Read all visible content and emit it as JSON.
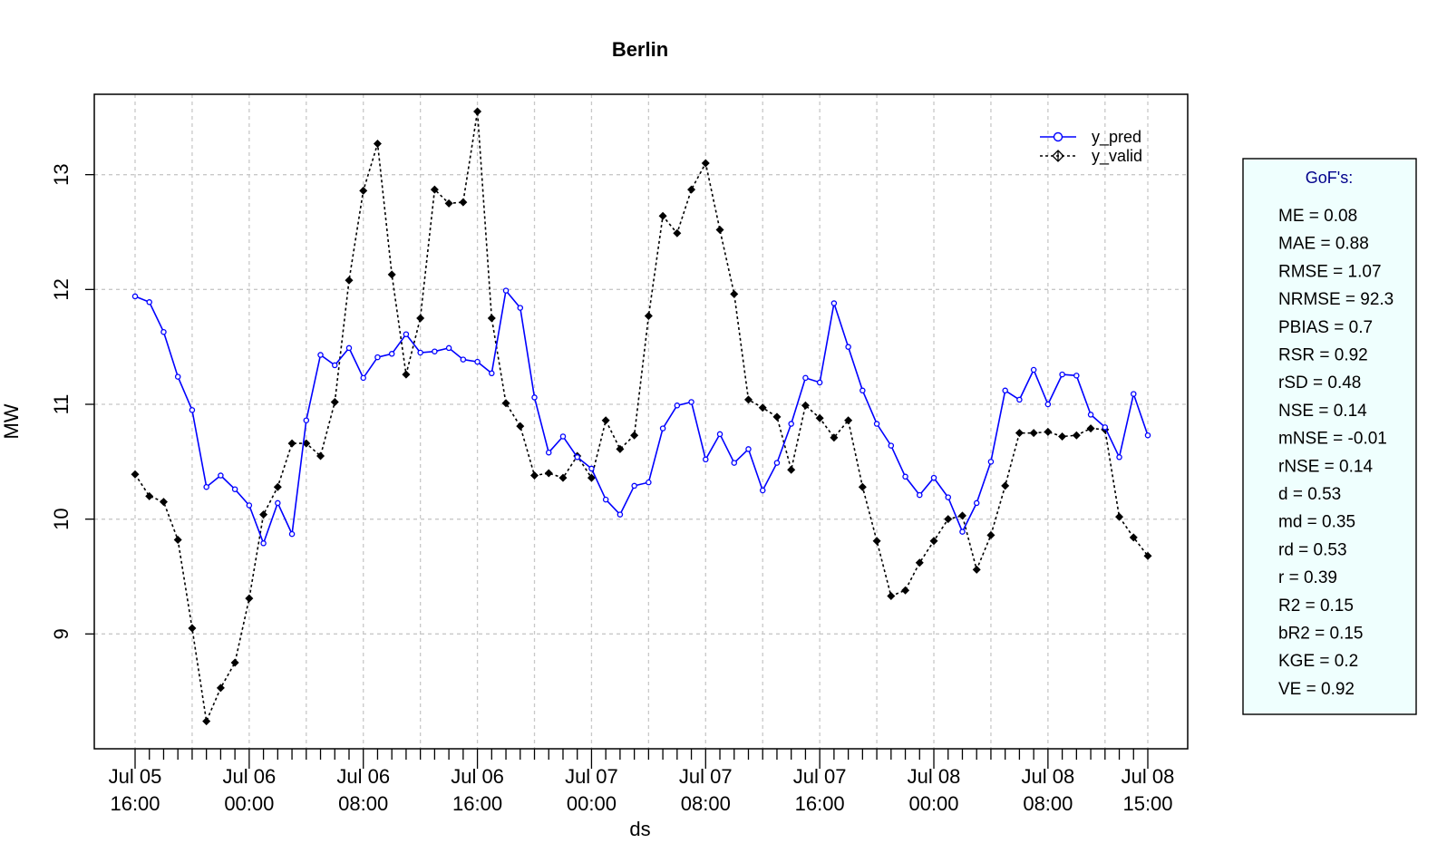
{
  "chart_data": {
    "type": "line",
    "title": "Berlin",
    "xlabel": "ds",
    "ylabel": "MW",
    "ylim": [
      8.0,
      13.7
    ],
    "grid": true,
    "legend_position": "top-right",
    "x_ticks": [
      {
        "line1": "Jul 05",
        "line2": "16:00",
        "hour": 0
      },
      {
        "line1": "Jul 06",
        "line2": "00:00",
        "hour": 8
      },
      {
        "line1": "Jul 06",
        "line2": "08:00",
        "hour": 16
      },
      {
        "line1": "Jul 06",
        "line2": "16:00",
        "hour": 24
      },
      {
        "line1": "Jul 07",
        "line2": "00:00",
        "hour": 32
      },
      {
        "line1": "Jul 07",
        "line2": "08:00",
        "hour": 40
      },
      {
        "line1": "Jul 07",
        "line2": "16:00",
        "hour": 48
      },
      {
        "line1": "Jul 08",
        "line2": "00:00",
        "hour": 56
      },
      {
        "line1": "Jul 08",
        "line2": "08:00",
        "hour": 64
      },
      {
        "line1": "Jul 08",
        "line2": "15:00",
        "hour": 71
      }
    ],
    "y_ticks": [
      9,
      10,
      11,
      12,
      13
    ],
    "x_range_hours": [
      0,
      71
    ],
    "series": [
      {
        "name": "y_pred",
        "color": "#0000ff",
        "line_style": "solid",
        "marker": "circle",
        "values": [
          11.94,
          11.89,
          11.63,
          11.24,
          10.95,
          10.28,
          10.38,
          10.26,
          10.12,
          9.79,
          10.14,
          9.87,
          10.86,
          11.43,
          11.34,
          11.49,
          11.23,
          11.41,
          11.44,
          11.61,
          11.45,
          11.46,
          11.49,
          11.39,
          11.37,
          11.27,
          11.99,
          11.84,
          11.06,
          10.58,
          10.72,
          10.54,
          10.44,
          10.17,
          10.04,
          10.29,
          10.32,
          10.79,
          10.99,
          11.02,
          10.52,
          10.74,
          10.49,
          10.61,
          10.25,
          10.49,
          10.83,
          11.23,
          11.19,
          11.88,
          11.5,
          11.12,
          10.83,
          10.64,
          10.37,
          10.21,
          10.36,
          10.19,
          9.89,
          10.14,
          10.5,
          11.12,
          11.04,
          11.3,
          11.0,
          11.26,
          11.25,
          10.91,
          10.8,
          10.54,
          11.09,
          10.73
        ]
      },
      {
        "name": "y_valid",
        "color": "#000000",
        "line_style": "dotted",
        "marker": "diamond",
        "values": [
          10.39,
          10.2,
          10.15,
          9.82,
          9.05,
          8.24,
          8.53,
          8.75,
          9.31,
          10.04,
          10.28,
          10.66,
          10.66,
          10.55,
          11.02,
          12.08,
          12.86,
          13.27,
          12.13,
          11.26,
          11.75,
          12.87,
          12.75,
          12.76,
          13.55,
          11.75,
          11.01,
          10.81,
          10.38,
          10.4,
          10.36,
          10.55,
          10.36,
          10.86,
          10.61,
          10.73,
          11.77,
          12.64,
          12.49,
          12.87,
          13.1,
          12.52,
          11.96,
          11.04,
          10.97,
          10.89,
          10.43,
          10.99,
          10.88,
          10.71,
          10.86,
          10.28,
          9.81,
          9.33,
          9.38,
          9.62,
          9.81,
          10.0,
          10.03,
          9.56,
          9.86,
          10.29,
          10.75,
          10.75,
          10.76,
          10.72,
          10.73,
          10.79,
          10.78,
          10.02,
          9.84,
          9.68
        ]
      }
    ],
    "gof": {
      "title": "GoF's:",
      "entries": [
        "ME = 0.08",
        "MAE = 0.88",
        "RMSE = 1.07",
        "NRMSE = 92.3",
        "PBIAS = 0.7",
        "RSR = 0.92",
        "rSD = 0.48",
        "NSE = 0.14",
        "mNSE = -0.01",
        "rNSE = 0.14",
        "d = 0.53",
        "md = 0.35",
        "rd = 0.53",
        "r = 0.39",
        "R2 = 0.15",
        "bR2 = 0.15",
        "KGE = 0.2",
        "VE = 0.92"
      ],
      "background": "#effffe",
      "title_color": "#00008b"
    }
  }
}
